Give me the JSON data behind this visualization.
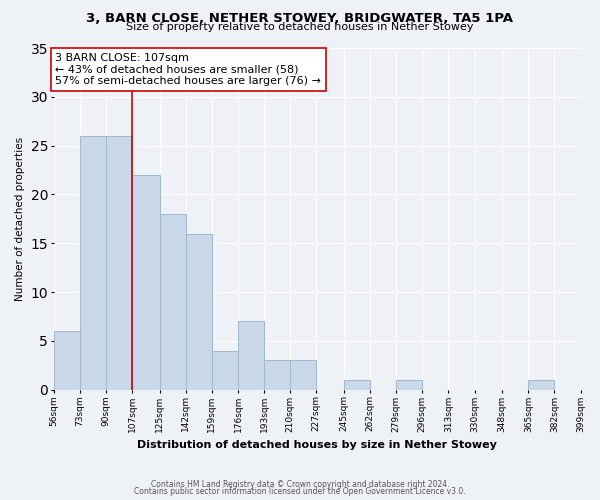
{
  "title": "3, BARN CLOSE, NETHER STOWEY, BRIDGWATER, TA5 1PA",
  "subtitle": "Size of property relative to detached houses in Nether Stowey",
  "xlabel": "Distribution of detached houses by size in Nether Stowey",
  "ylabel": "Number of detached properties",
  "bin_edges": [
    56,
    73,
    90,
    107,
    125,
    142,
    159,
    176,
    193,
    210,
    227,
    245,
    262,
    279,
    296,
    313,
    330,
    348,
    365,
    382,
    399
  ],
  "bin_labels": [
    "56sqm",
    "73sqm",
    "90sqm",
    "107sqm",
    "125sqm",
    "142sqm",
    "159sqm",
    "176sqm",
    "193sqm",
    "210sqm",
    "227sqm",
    "245sqm",
    "262sqm",
    "279sqm",
    "296sqm",
    "313sqm",
    "330sqm",
    "348sqm",
    "365sqm",
    "382sqm",
    "399sqm"
  ],
  "counts": [
    6,
    26,
    26,
    22,
    18,
    16,
    4,
    7,
    3,
    3,
    0,
    1,
    0,
    1,
    0,
    0,
    0,
    0,
    1,
    0
  ],
  "bar_color": "#c8d8e8",
  "bar_edge_color": "#a0b8cc",
  "vline_x": 107,
  "vline_color": "#cc0000",
  "annotation_text": "3 BARN CLOSE: 107sqm\n← 43% of detached houses are smaller (58)\n57% of semi-detached houses are larger (76) →",
  "annotation_box_color": "#ffffff",
  "annotation_box_edge": "#cc0000",
  "ylim": [
    0,
    35
  ],
  "yticks": [
    0,
    5,
    10,
    15,
    20,
    25,
    30,
    35
  ],
  "footer1": "Contains HM Land Registry data © Crown copyright and database right 2024.",
  "footer2": "Contains public sector information licensed under the Open Government Licence v3.0.",
  "bg_color": "#eef2f7"
}
